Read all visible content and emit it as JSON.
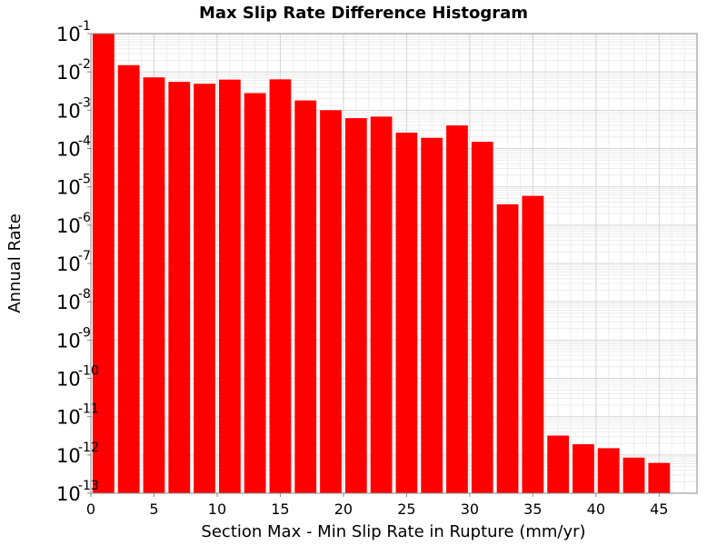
{
  "chart_data": {
    "type": "bar",
    "title": "Max Slip Rate Difference Histogram",
    "xlabel": "Section Max - Min Slip Rate in Rupture (mm/yr)",
    "ylabel": "Annual Rate",
    "xlim": [
      0,
      48
    ],
    "ylim": [
      1e-13,
      0.1
    ],
    "yscale": "log",
    "grid": true,
    "legend": "none",
    "bin_width": 2,
    "bar_color": "#ff0000",
    "x_ticks": [
      0,
      5,
      10,
      15,
      20,
      25,
      30,
      35,
      40,
      45
    ],
    "y_tick_exponents": [
      -1,
      -2,
      -3,
      -4,
      -5,
      -6,
      -7,
      -8,
      -9,
      -10,
      -11,
      -12,
      -13
    ],
    "bars": [
      {
        "x": 1,
        "y": 0.1
      },
      {
        "x": 3,
        "y": 0.015
      },
      {
        "x": 5,
        "y": 0.0072
      },
      {
        "x": 7,
        "y": 0.0055
      },
      {
        "x": 9,
        "y": 0.0049
      },
      {
        "x": 11,
        "y": 0.0063
      },
      {
        "x": 13,
        "y": 0.0028
      },
      {
        "x": 15,
        "y": 0.0064
      },
      {
        "x": 17,
        "y": 0.0018
      },
      {
        "x": 19,
        "y": 0.001
      },
      {
        "x": 21,
        "y": 0.00062
      },
      {
        "x": 23,
        "y": 0.00068
      },
      {
        "x": 25,
        "y": 0.00026
      },
      {
        "x": 27,
        "y": 0.00019
      },
      {
        "x": 29,
        "y": 0.0004
      },
      {
        "x": 31,
        "y": 0.00015
      },
      {
        "x": 33,
        "y": 3.5e-06
      },
      {
        "x": 35,
        "y": 5.8e-06
      },
      {
        "x": 37,
        "y": 3.2e-12
      },
      {
        "x": 39,
        "y": 1.9e-12
      },
      {
        "x": 41,
        "y": 1.5e-12
      },
      {
        "x": 43,
        "y": 8.5e-13
      },
      {
        "x": 45,
        "y": 6.2e-13
      }
    ]
  }
}
